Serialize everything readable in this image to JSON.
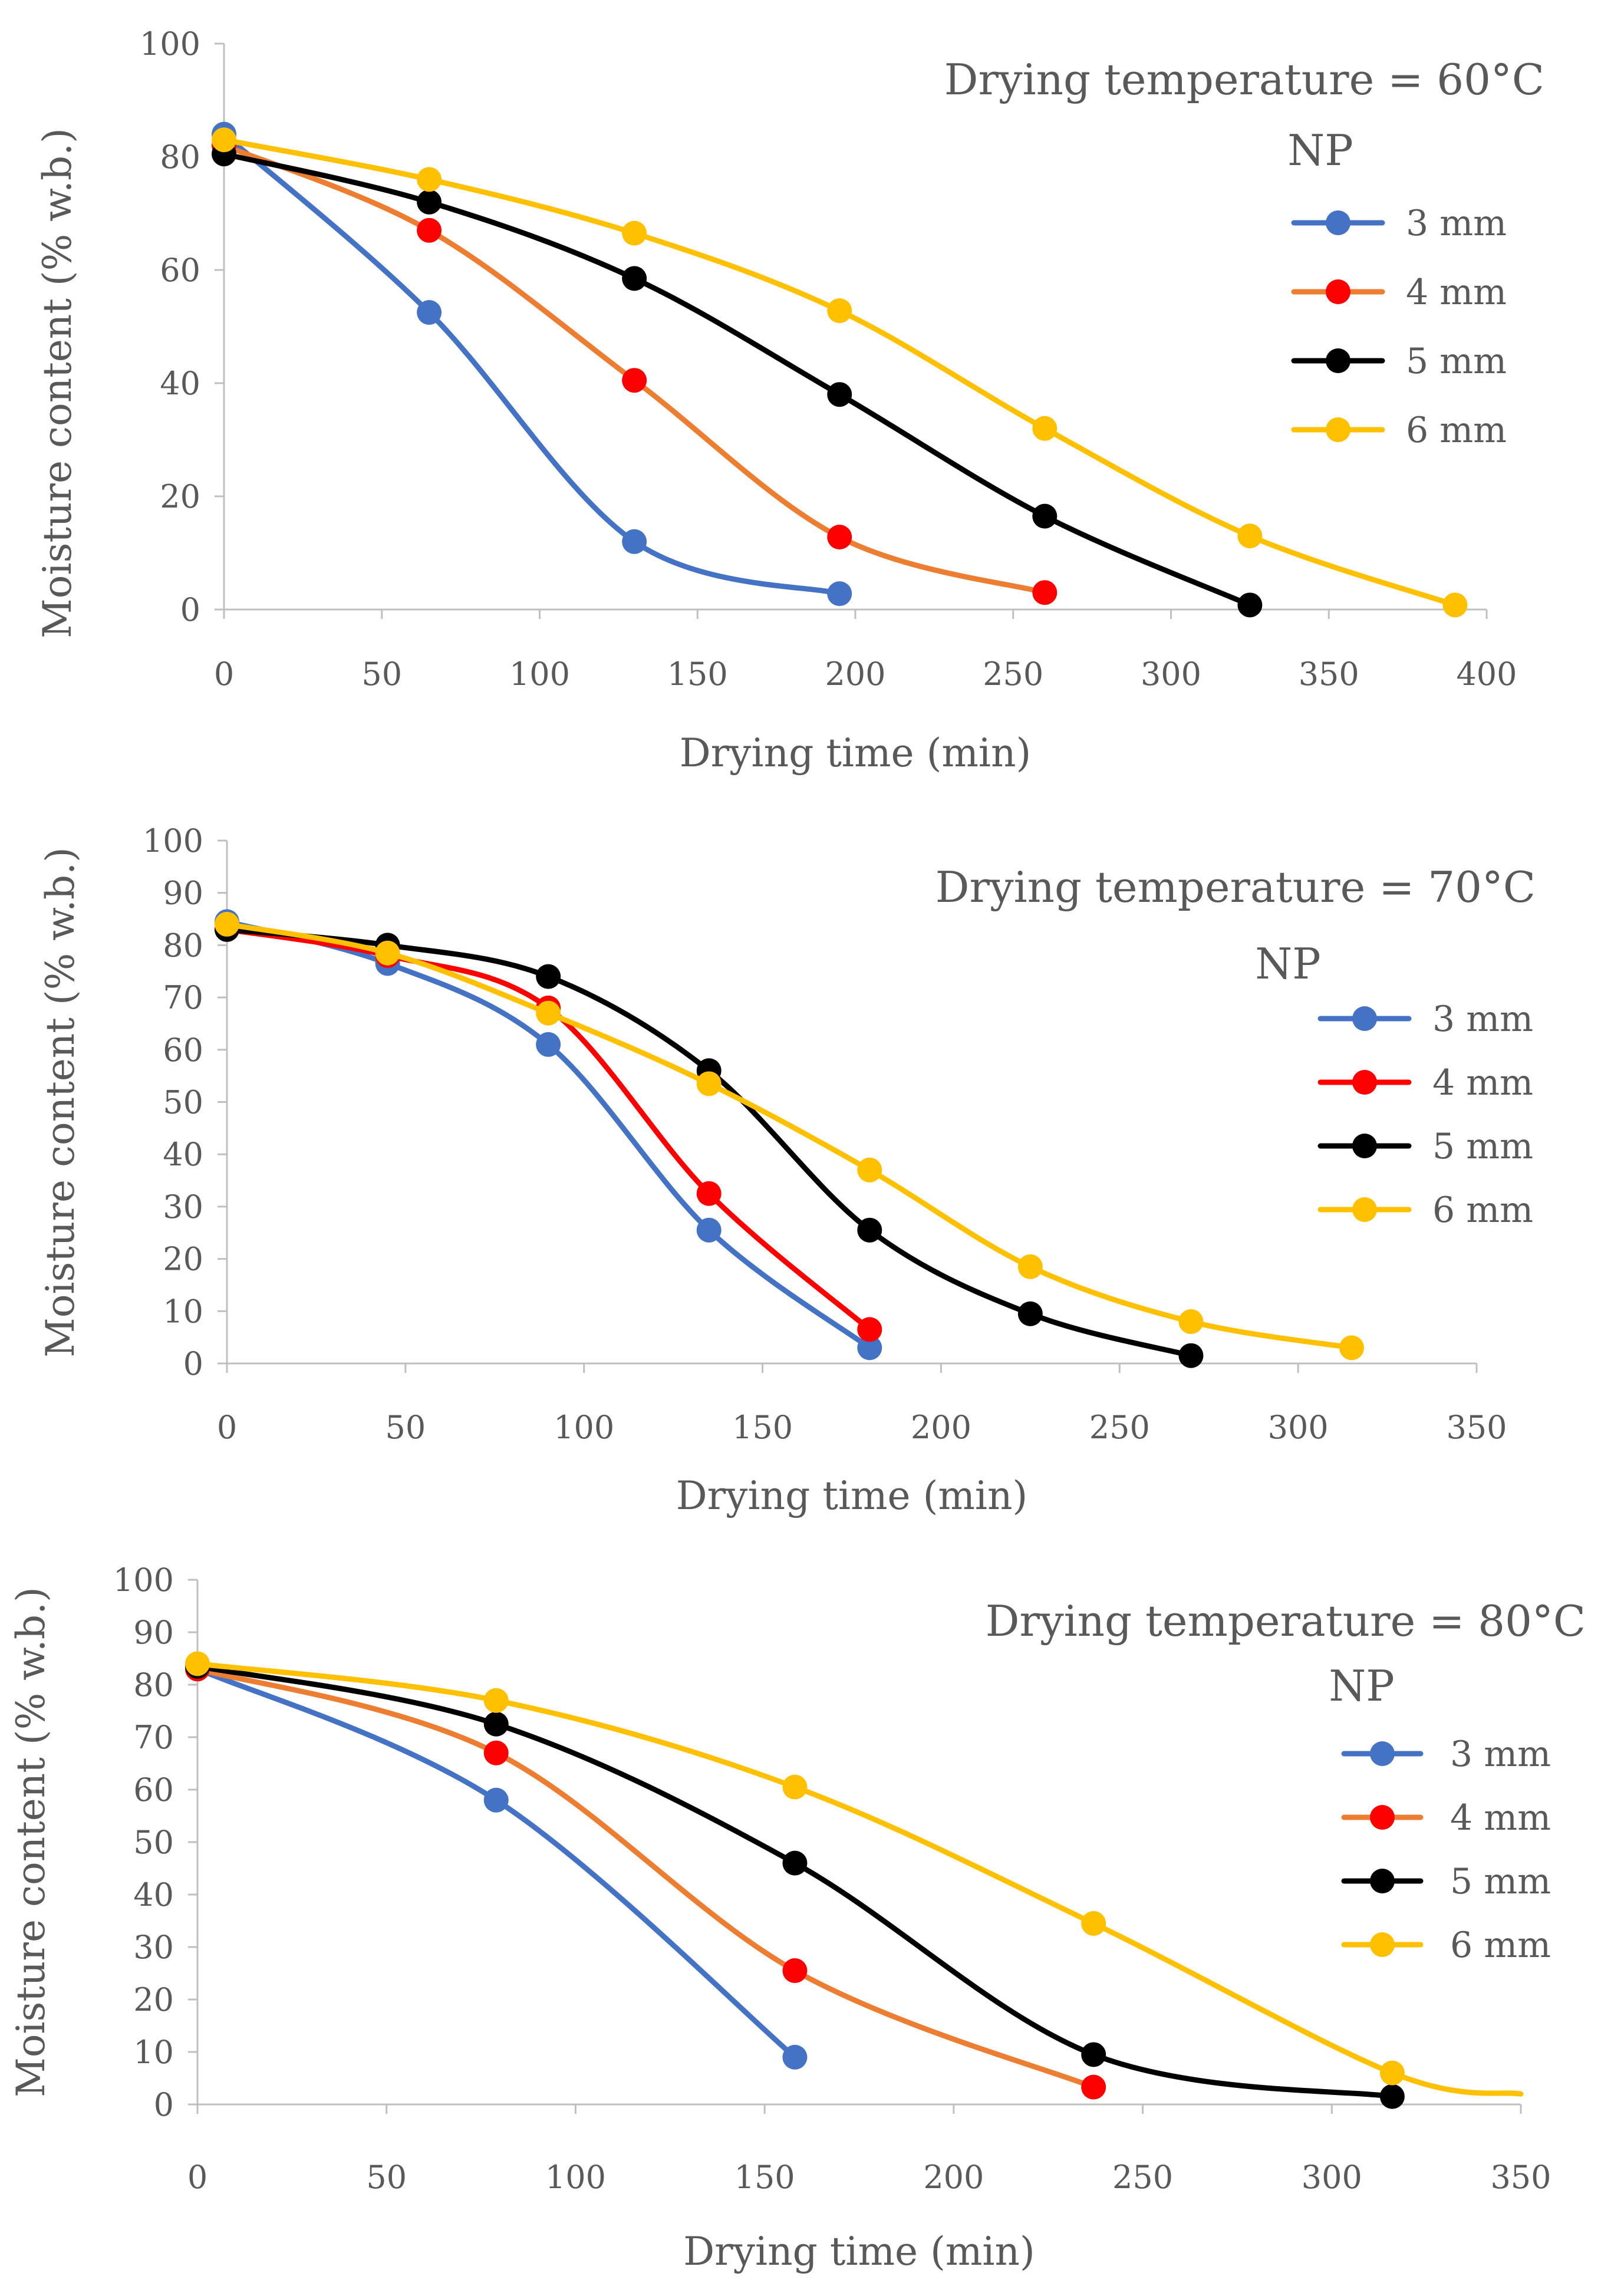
{
  "colors": {
    "3 mm": "#4472C4",
    "4 mm": "#ED7D31",
    "5 mm": "#000000",
    "6 mm": "#FFC000",
    "marker_red": "#FF0000",
    "axis": "#BFBFBF",
    "text": "#595959"
  },
  "chart_data": [
    {
      "type": "line",
      "title": "Drying temperature = 60°C",
      "subtitle": "NP",
      "xlabel": "Drying time (min)",
      "ylabel": "Moisture content (% w.b.)",
      "xlim": [
        0,
        400
      ],
      "ylim": [
        0,
        100
      ],
      "xticks": [
        0,
        50,
        100,
        150,
        200,
        250,
        300,
        350,
        400
      ],
      "yticks": [
        0,
        20,
        40,
        60,
        80,
        100
      ],
      "legend_position": "right",
      "series": [
        {
          "name": "3 mm",
          "x": [
            0,
            65,
            130,
            195
          ],
          "y": [
            84,
            52.5,
            12,
            2.8
          ],
          "line_color": "#4472C4",
          "marker_color": "#4472C4"
        },
        {
          "name": "4 mm",
          "x": [
            0,
            65,
            130,
            195,
            260
          ],
          "y": [
            82,
            67,
            40.5,
            12.8,
            3
          ],
          "line_color": "#ED7D31",
          "marker_color": "#FF0000"
        },
        {
          "name": "5 mm",
          "x": [
            0,
            65,
            130,
            195,
            260,
            325
          ],
          "y": [
            80.5,
            72,
            58.5,
            38,
            16.5,
            0.8
          ],
          "line_color": "#000000",
          "marker_color": "#000000"
        },
        {
          "name": "6 mm",
          "x": [
            0,
            65,
            130,
            195,
            260,
            325,
            390
          ],
          "y": [
            83,
            76,
            66.5,
            52.8,
            32,
            13,
            0.8
          ],
          "line_color": "#FFC000",
          "marker_color": "#FFC000"
        }
      ]
    },
    {
      "type": "line",
      "title": "Drying temperature = 70°C",
      "subtitle": "NP",
      "xlabel": "Drying time (min)",
      "ylabel": "Moisture content (% w.b.)",
      "xlim": [
        0,
        350
      ],
      "ylim": [
        0,
        100
      ],
      "xticks": [
        0,
        50,
        100,
        150,
        200,
        250,
        300,
        350
      ],
      "yticks": [
        0,
        10,
        20,
        30,
        40,
        50,
        60,
        70,
        80,
        90,
        100
      ],
      "legend_position": "right",
      "series": [
        {
          "name": "3 mm",
          "x": [
            0,
            45,
            90,
            135,
            180
          ],
          "y": [
            84.5,
            76.5,
            61,
            25.5,
            3
          ],
          "line_color": "#4472C4",
          "marker_color": "#4472C4"
        },
        {
          "name": "4 mm",
          "x": [
            0,
            45,
            90,
            135,
            180
          ],
          "y": [
            83,
            78,
            68,
            32.5,
            6.5
          ],
          "line_color": "#FF0000",
          "marker_color": "#FF0000"
        },
        {
          "name": "5 mm",
          "x": [
            0,
            45,
            90,
            135,
            180,
            225,
            270
          ],
          "y": [
            83,
            80,
            74,
            56,
            25.5,
            9.5,
            1.5
          ],
          "line_color": "#000000",
          "marker_color": "#000000"
        },
        {
          "name": "6 mm",
          "x": [
            0,
            45,
            90,
            135,
            180,
            225,
            270,
            315
          ],
          "y": [
            84,
            78.5,
            67,
            53.5,
            37,
            18.5,
            8,
            3
          ],
          "line_color": "#FFC000",
          "marker_color": "#FFC000"
        }
      ]
    },
    {
      "type": "line",
      "title": "Drying temperature = 80°C",
      "subtitle": "NP",
      "xlabel": "Drying time (min)",
      "ylabel": "Moisture content (% w.b.)",
      "xlim": [
        0,
        350
      ],
      "ylim": [
        0,
        100
      ],
      "xticks": [
        0,
        50,
        100,
        150,
        200,
        250,
        300,
        350
      ],
      "yticks": [
        0,
        10,
        20,
        30,
        40,
        50,
        60,
        70,
        80,
        90,
        100
      ],
      "legend_position": "right",
      "series": [
        {
          "name": "3 mm",
          "x": [
            0,
            79,
            158
          ],
          "y": [
            83,
            58,
            9
          ],
          "line_color": "#4472C4",
          "marker_color": "#4472C4"
        },
        {
          "name": "4 mm",
          "x": [
            0,
            79,
            158,
            237
          ],
          "y": [
            83,
            67,
            25.5,
            3.3
          ],
          "line_color": "#ED7D31",
          "marker_color": "#FF0000"
        },
        {
          "name": "5 mm",
          "x": [
            0,
            79,
            158,
            237,
            316
          ],
          "y": [
            83.5,
            72.5,
            46,
            9.5,
            1.5
          ],
          "line_color": "#000000",
          "marker_color": "#000000"
        },
        {
          "name": "6 mm",
          "x": [
            0,
            79,
            158,
            237,
            316
          ],
          "y": [
            84,
            77,
            60.5,
            34.5,
            6
          ],
          "line_color": "#FFC000",
          "marker_color": "#FFC000",
          "tail": {
            "x": 350,
            "y": 2
          }
        }
      ]
    }
  ]
}
